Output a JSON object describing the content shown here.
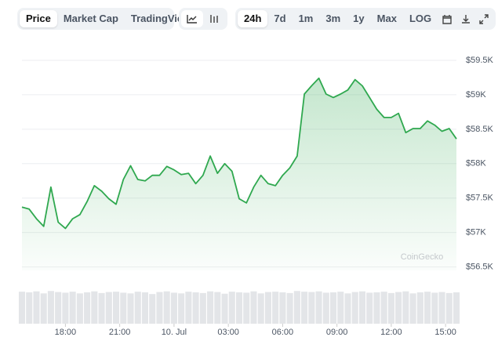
{
  "toolbar": {
    "views": [
      "Price",
      "Market Cap",
      "TradingView"
    ],
    "active_view": "Price",
    "ranges": [
      "24h",
      "7d",
      "1m",
      "3m",
      "1y",
      "Max",
      "LOG"
    ],
    "active_range": "24h"
  },
  "chart_data": {
    "type": "line",
    "watermark": "CoinGecko",
    "x": [
      15.6,
      16.0,
      16.4,
      16.8,
      17.2,
      17.6,
      18.0,
      18.4,
      18.8,
      19.2,
      19.6,
      20.0,
      20.4,
      20.8,
      21.2,
      21.6,
      22.0,
      22.4,
      22.8,
      23.2,
      23.6,
      24.0,
      24.4,
      24.8,
      25.2,
      25.6,
      26.0,
      26.4,
      26.8,
      27.2,
      27.6,
      28.0,
      28.4,
      28.8,
      29.2,
      29.6,
      30.0,
      30.4,
      30.8,
      31.2,
      31.6,
      32.0,
      32.4,
      32.8,
      33.2,
      33.6,
      34.0,
      34.4,
      34.8,
      35.2,
      35.6,
      36.0,
      36.4,
      36.8,
      37.2,
      37.6,
      38.0,
      38.4,
      38.8,
      39.2,
      39.6
    ],
    "series": [
      {
        "color": "#2fa84f",
        "values": [
          57370,
          57340,
          57200,
          57090,
          57660,
          57150,
          57060,
          57200,
          57260,
          57450,
          57680,
          57600,
          57490,
          57410,
          57770,
          57970,
          57770,
          57750,
          57830,
          57830,
          57960,
          57910,
          57840,
          57860,
          57710,
          57830,
          58110,
          57860,
          58000,
          57890,
          57490,
          57430,
          57660,
          57830,
          57710,
          57680,
          57830,
          57940,
          58110,
          59010,
          59130,
          59240,
          59010,
          58960,
          59010,
          59070,
          59220,
          59130,
          58960,
          58790,
          58670,
          58670,
          58730,
          58450,
          58510,
          58510,
          58620,
          58560,
          58470,
          58510,
          58360
        ]
      }
    ],
    "volume": {
      "color": "#e3e5e8",
      "ylim": [
        0,
        1
      ],
      "values": [
        0.95,
        0.93,
        0.96,
        0.9,
        0.97,
        0.94,
        0.92,
        0.95,
        0.9,
        0.93,
        0.96,
        0.91,
        0.94,
        0.95,
        0.92,
        0.9,
        0.95,
        0.93,
        0.88,
        0.94,
        0.96,
        0.92,
        0.9,
        0.95,
        0.93,
        0.91,
        0.96,
        0.94,
        0.89,
        0.95,
        0.93,
        0.92,
        0.96,
        0.9,
        0.94,
        0.95,
        0.93,
        0.91,
        0.97,
        0.95,
        0.94,
        0.96,
        0.92,
        0.93,
        0.95,
        0.9,
        0.94,
        0.96,
        0.92,
        0.93,
        0.95,
        0.91,
        0.94,
        0.96,
        0.9,
        0.93,
        0.95,
        0.92,
        0.94,
        0.91,
        0.93
      ]
    },
    "xlim": [
      15.6,
      39.6
    ],
    "xticks": [
      {
        "value": 18,
        "label": "18:00"
      },
      {
        "value": 21,
        "label": "21:00"
      },
      {
        "value": 24,
        "label": "10. Jul"
      },
      {
        "value": 27,
        "label": "03:00"
      },
      {
        "value": 30,
        "label": "06:00"
      },
      {
        "value": 33,
        "label": "09:00"
      },
      {
        "value": 36,
        "label": "12:00"
      },
      {
        "value": 39,
        "label": "15:00"
      }
    ],
    "ylim": [
      56450,
      59750
    ],
    "yticks": [
      {
        "value": 56500,
        "label": "$56.5K"
      },
      {
        "value": 57000,
        "label": "$57K"
      },
      {
        "value": 57500,
        "label": "$57.5K"
      },
      {
        "value": 58000,
        "label": "$58K"
      },
      {
        "value": 58500,
        "label": "$58.5K"
      },
      {
        "value": 59000,
        "label": "$59K"
      },
      {
        "value": 59500,
        "label": "$59.5K"
      }
    ],
    "grid": true
  }
}
